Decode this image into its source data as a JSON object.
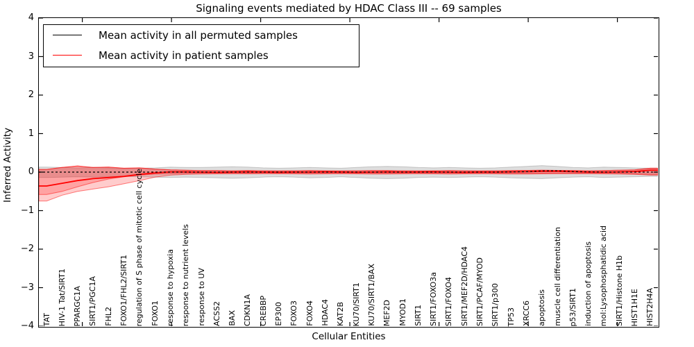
{
  "title": "Signaling events mediated by HDAC Class III -- 69 samples",
  "axes": {
    "ylabel": "Inferred Activity",
    "xlabel": "Cellular Entities",
    "ytick_labels": [
      "4",
      "3",
      "2",
      "1",
      "0",
      "−1",
      "−2",
      "−3",
      "−4"
    ],
    "yticks": [
      4,
      3,
      2,
      1,
      0,
      -1,
      -2,
      -3,
      -4
    ]
  },
  "legend": {
    "items": [
      {
        "label": "Mean activity in all permuted samples",
        "color": "#000000"
      },
      {
        "label": "Mean activity in patient samples",
        "color": "#ff0000"
      }
    ]
  },
  "chart_data": {
    "type": "line",
    "title": "Signaling events mediated by HDAC Class III -- 69 samples",
    "xlabel": "Cellular Entities",
    "ylabel": "Inferred Activity",
    "ylim": [
      -4,
      4
    ],
    "grid": false,
    "legend_position": "upper left",
    "categories": [
      "TAT",
      "HIV-1 Tat/SIRT1",
      "PPARGC1A",
      "SIRT1/PGC1A",
      "FHL2",
      "FOXO1/FHL2/SIRT1",
      "regulation of S phase of mitotic cell cycle",
      "FOXO1",
      "response to hypoxia",
      "response to nutrient levels",
      "response to UV",
      "ACSS2",
      "BAX",
      "CDKN1A",
      "CREBBP",
      "EP300",
      "FOXO3",
      "FOXO4",
      "HDAC4",
      "KAT2B",
      "KU70/SIRT1",
      "KU70/SIRT1/BAX",
      "MEF2D",
      "MYOD1",
      "SIRT1",
      "SIRT1/FOXO3a",
      "SIRT1/FOXO4",
      "SIRT1/MEF2D/HDAC4",
      "SIRT1/PCAF/MYOD",
      "SIRT1/p300",
      "TP53",
      "XRCC6",
      "apoptosis",
      "muscle cell differentiation",
      "p53/SIRT1",
      "induction of apoptosis",
      "mol:Lysophosphatidic acid",
      "SIRT1/Histone H1b",
      "HIST1H1E",
      "HIST2H4A"
    ],
    "series": [
      {
        "name": "Mean activity in all permuted samples",
        "color": "#000000",
        "style": "dashed",
        "values": [
          0,
          0,
          0,
          0,
          0,
          0,
          0,
          0,
          0,
          0,
          0,
          0,
          0,
          0,
          0,
          0,
          0,
          0,
          0,
          0,
          0,
          0,
          0,
          0,
          0,
          0,
          0,
          0,
          0,
          0,
          0.005,
          0.01,
          0.03,
          0.035,
          0.015,
          0.005,
          0,
          0,
          0,
          0
        ]
      },
      {
        "name": "Mean activity in patient samples",
        "color": "#ff0000",
        "style": "solid",
        "values": [
          -0.36,
          -0.29,
          -0.22,
          -0.17,
          -0.14,
          -0.11,
          -0.06,
          -0.02,
          0.005,
          0.005,
          0,
          -0.005,
          0,
          0.005,
          0,
          -0.005,
          0,
          0,
          0.005,
          0,
          -0.005,
          0,
          0.005,
          0,
          0,
          0.005,
          0,
          -0.005,
          0,
          0,
          0.005,
          0.01,
          0.02,
          0.02,
          0.01,
          0,
          0,
          0.005,
          0.015,
          0.05
        ]
      }
    ],
    "bands": [
      {
        "name": "permuted-band",
        "color": "#000000",
        "fill_opacity": 0.13,
        "edge_opacity": 0.18,
        "upper": [
          0.13,
          0.12,
          0.11,
          0.12,
          0.11,
          0.09,
          0.1,
          0.11,
          0.13,
          0.12,
          0.12,
          0.13,
          0.14,
          0.13,
          0.11,
          0.1,
          0.11,
          0.12,
          0.11,
          0.1,
          0.12,
          0.14,
          0.15,
          0.14,
          0.12,
          0.11,
          0.12,
          0.11,
          0.1,
          0.11,
          0.13,
          0.15,
          0.17,
          0.15,
          0.12,
          0.11,
          0.13,
          0.12,
          0.11,
          0.1
        ],
        "lower": [
          -0.14,
          -0.13,
          -0.12,
          -0.13,
          -0.12,
          -0.11,
          -0.12,
          -0.13,
          -0.14,
          -0.13,
          -0.14,
          -0.15,
          -0.16,
          -0.15,
          -0.13,
          -0.12,
          -0.13,
          -0.15,
          -0.14,
          -0.12,
          -0.14,
          -0.16,
          -0.17,
          -0.16,
          -0.14,
          -0.13,
          -0.14,
          -0.13,
          -0.12,
          -0.13,
          -0.15,
          -0.16,
          -0.17,
          -0.15,
          -0.13,
          -0.12,
          -0.14,
          -0.13,
          -0.12,
          -0.11
        ]
      },
      {
        "name": "patient-band-outer",
        "color": "#ff0000",
        "fill_opacity": 0.2,
        "edge_opacity": 0.5,
        "upper": [
          0.07,
          0.12,
          0.16,
          0.12,
          0.13,
          0.1,
          0.11,
          0.08,
          0.06,
          0.05,
          0.04,
          0.04,
          0.035,
          0.04,
          0.035,
          0.03,
          0.035,
          0.04,
          0.035,
          0.03,
          0.035,
          0.04,
          0.04,
          0.035,
          0.03,
          0.035,
          0.04,
          0.035,
          0.03,
          0.035,
          0.04,
          0.045,
          0.05,
          0.045,
          0.04,
          0.035,
          0.04,
          0.05,
          0.06,
          0.1
        ],
        "lower": [
          -0.75,
          -0.6,
          -0.5,
          -0.44,
          -0.38,
          -0.3,
          -0.22,
          -0.13,
          -0.08,
          -0.06,
          -0.05,
          -0.045,
          -0.04,
          -0.045,
          -0.04,
          -0.04,
          -0.045,
          -0.05,
          -0.045,
          -0.04,
          -0.045,
          -0.05,
          -0.05,
          -0.045,
          -0.04,
          -0.045,
          -0.05,
          -0.045,
          -0.04,
          -0.045,
          -0.05,
          -0.05,
          -0.045,
          -0.04,
          -0.04,
          -0.04,
          -0.045,
          -0.05,
          -0.06,
          -0.08
        ]
      },
      {
        "name": "patient-band-inner",
        "color": "#ff0000",
        "fill_opacity": 0.2,
        "edge_opacity": 0.5,
        "upper": [
          0.07,
          0.12,
          0.16,
          0.12,
          0.13,
          0.1,
          0.11,
          0.08,
          0.06,
          0.05,
          0.04,
          0.04,
          0.035,
          0.04,
          0.035,
          0.03,
          0.035,
          0.04,
          0.035,
          0.03,
          0.035,
          0.04,
          0.04,
          0.035,
          0.03,
          0.035,
          0.04,
          0.035,
          0.03,
          0.035,
          0.04,
          0.045,
          0.05,
          0.045,
          0.04,
          0.035,
          0.04,
          0.05,
          0.06,
          0.1
        ],
        "lower": [
          -0.58,
          -0.5,
          -0.38,
          -0.27,
          -0.18,
          -0.12,
          -0.08,
          -0.05,
          -0.04,
          -0.035,
          -0.03,
          -0.03,
          -0.03,
          -0.03,
          -0.03,
          -0.03,
          -0.03,
          -0.035,
          -0.03,
          -0.03,
          -0.03,
          -0.035,
          -0.035,
          -0.03,
          -0.03,
          -0.03,
          -0.035,
          -0.03,
          -0.03,
          -0.03,
          -0.035,
          -0.035,
          -0.03,
          -0.03,
          -0.03,
          -0.03,
          -0.03,
          -0.035,
          -0.045,
          -0.06
        ]
      }
    ]
  }
}
